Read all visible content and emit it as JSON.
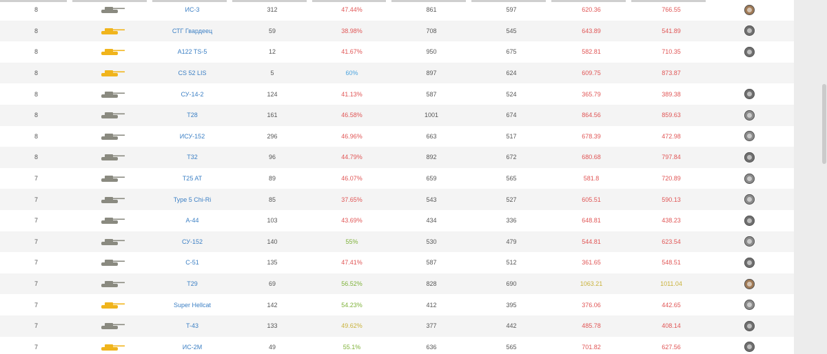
{
  "colors": {
    "link": "#3b7fc4",
    "bad": "#e05555",
    "good": "#7fb23a",
    "great": "#4aa3df",
    "average": "#c9b23c",
    "tank_regular": "#8a8a80",
    "tank_premium": "#f0b41c"
  },
  "rows": [
    {
      "tier": "8",
      "tank_icon": "tank-icon",
      "premium": false,
      "name": "ИС-3",
      "battles": "312",
      "winrate": "47.44%",
      "winrate_color": "red",
      "col_a": "861",
      "col_b": "597",
      "wn_a": "620.36",
      "wn_a_color": "red",
      "wn_b": "766.55",
      "wn_b_color": "red",
      "badge": "bronze"
    },
    {
      "tier": "8",
      "tank_icon": "tank-icon",
      "premium": true,
      "name": "СТГ Гвардеец",
      "battles": "59",
      "winrate": "38.98%",
      "winrate_color": "red",
      "col_a": "708",
      "col_b": "545",
      "wn_a": "643.89",
      "wn_a_color": "red",
      "wn_b": "541.89",
      "wn_b_color": "red",
      "badge": "dark"
    },
    {
      "tier": "8",
      "tank_icon": "tank-icon",
      "premium": true,
      "name": "A122 TS-5",
      "battles": "12",
      "winrate": "41.67%",
      "winrate_color": "red",
      "col_a": "950",
      "col_b": "675",
      "wn_a": "582.81",
      "wn_a_color": "red",
      "wn_b": "710.35",
      "wn_b_color": "red",
      "badge": "dark"
    },
    {
      "tier": "8",
      "tank_icon": "tank-icon",
      "premium": true,
      "name": "CS 52 LIS",
      "battles": "5",
      "winrate": "60%",
      "winrate_color": "blue",
      "col_a": "897",
      "col_b": "624",
      "wn_a": "609.75",
      "wn_a_color": "red",
      "wn_b": "873.87",
      "wn_b_color": "red",
      "badge": "none"
    },
    {
      "tier": "8",
      "tank_icon": "tank-icon",
      "premium": false,
      "name": "СУ-14-2",
      "battles": "124",
      "winrate": "41.13%",
      "winrate_color": "red",
      "col_a": "587",
      "col_b": "524",
      "wn_a": "365.79",
      "wn_a_color": "red",
      "wn_b": "389.38",
      "wn_b_color": "red",
      "badge": "dark"
    },
    {
      "tier": "8",
      "tank_icon": "tank-icon",
      "premium": false,
      "name": "T28",
      "battles": "161",
      "winrate": "46.58%",
      "winrate_color": "red",
      "col_a": "1001",
      "col_b": "674",
      "wn_a": "864.56",
      "wn_a_color": "red",
      "wn_b": "859.63",
      "wn_b_color": "red",
      "badge": "silver"
    },
    {
      "tier": "8",
      "tank_icon": "tank-icon",
      "premium": false,
      "name": "ИСУ-152",
      "battles": "296",
      "winrate": "46.96%",
      "winrate_color": "red",
      "col_a": "663",
      "col_b": "517",
      "wn_a": "678.39",
      "wn_a_color": "red",
      "wn_b": "472.98",
      "wn_b_color": "red",
      "badge": "silver"
    },
    {
      "tier": "8",
      "tank_icon": "tank-icon",
      "premium": false,
      "name": "T32",
      "battles": "96",
      "winrate": "44.79%",
      "winrate_color": "red",
      "col_a": "892",
      "col_b": "672",
      "wn_a": "680.68",
      "wn_a_color": "red",
      "wn_b": "797.84",
      "wn_b_color": "red",
      "badge": "dark"
    },
    {
      "tier": "7",
      "tank_icon": "tank-icon",
      "premium": false,
      "name": "T25 AT",
      "battles": "89",
      "winrate": "46.07%",
      "winrate_color": "red",
      "col_a": "659",
      "col_b": "565",
      "wn_a": "581.8",
      "wn_a_color": "red",
      "wn_b": "720.89",
      "wn_b_color": "red",
      "badge": "silver"
    },
    {
      "tier": "7",
      "tank_icon": "tank-icon",
      "premium": false,
      "name": "Type 5 Chi-Ri",
      "battles": "85",
      "winrate": "37.65%",
      "winrate_color": "red",
      "col_a": "543",
      "col_b": "527",
      "wn_a": "605.51",
      "wn_a_color": "red",
      "wn_b": "590.13",
      "wn_b_color": "red",
      "badge": "silver"
    },
    {
      "tier": "7",
      "tank_icon": "tank-icon",
      "premium": false,
      "name": "A-44",
      "battles": "103",
      "winrate": "43.69%",
      "winrate_color": "red",
      "col_a": "434",
      "col_b": "336",
      "wn_a": "648.81",
      "wn_a_color": "red",
      "wn_b": "438.23",
      "wn_b_color": "red",
      "badge": "dark"
    },
    {
      "tier": "7",
      "tank_icon": "tank-icon",
      "premium": false,
      "name": "СУ-152",
      "battles": "140",
      "winrate": "55%",
      "winrate_color": "green",
      "col_a": "530",
      "col_b": "479",
      "wn_a": "544.81",
      "wn_a_color": "red",
      "wn_b": "623.54",
      "wn_b_color": "red",
      "badge": "silver"
    },
    {
      "tier": "7",
      "tank_icon": "tank-icon",
      "premium": false,
      "name": "С-51",
      "battles": "135",
      "winrate": "47.41%",
      "winrate_color": "red",
      "col_a": "587",
      "col_b": "512",
      "wn_a": "361.65",
      "wn_a_color": "red",
      "wn_b": "548.51",
      "wn_b_color": "red",
      "badge": "dark"
    },
    {
      "tier": "7",
      "tank_icon": "tank-icon",
      "premium": false,
      "name": "T29",
      "battles": "69",
      "winrate": "56.52%",
      "winrate_color": "green",
      "col_a": "828",
      "col_b": "690",
      "wn_a": "1063.21",
      "wn_a_color": "yellow",
      "wn_b": "1011.04",
      "wn_b_color": "yellow",
      "badge": "bronze"
    },
    {
      "tier": "7",
      "tank_icon": "tank-icon",
      "premium": true,
      "name": "Super Hellcat",
      "battles": "142",
      "winrate": "54.23%",
      "winrate_color": "green",
      "col_a": "412",
      "col_b": "395",
      "wn_a": "376.06",
      "wn_a_color": "red",
      "wn_b": "442.65",
      "wn_b_color": "red",
      "badge": "silver"
    },
    {
      "tier": "7",
      "tank_icon": "tank-icon",
      "premium": false,
      "name": "T-43",
      "battles": "133",
      "winrate": "49.62%",
      "winrate_color": "yellow",
      "col_a": "377",
      "col_b": "442",
      "wn_a": "485.78",
      "wn_a_color": "red",
      "wn_b": "408.14",
      "wn_b_color": "red",
      "badge": "dark"
    },
    {
      "tier": "7",
      "tank_icon": "tank-icon",
      "premium": true,
      "name": "ИС-2М",
      "battles": "49",
      "winrate": "55.1%",
      "winrate_color": "green",
      "col_a": "636",
      "col_b": "565",
      "wn_a": "701.82",
      "wn_a_color": "red",
      "wn_b": "627.56",
      "wn_b_color": "red",
      "badge": "dark"
    }
  ]
}
